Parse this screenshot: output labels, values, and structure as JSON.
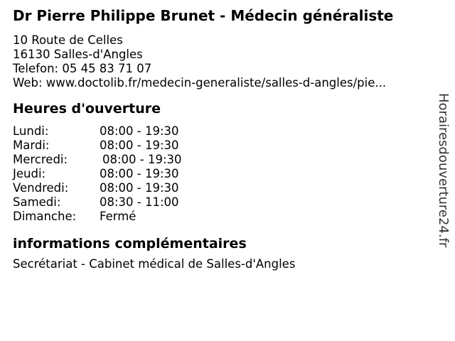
{
  "header": {
    "title": "Dr Pierre Philippe Brunet - Médecin généraliste",
    "street": "10 Route de Celles",
    "city": "16130 Salles-d'Angles",
    "phone_line": "Telefon: 05 45 83 71 07",
    "web_line": "Web: www.doctolib.fr/medecin-generaliste/salles-d-angles/pie..."
  },
  "hours": {
    "heading": "Heures d'ouverture",
    "rows": [
      {
        "day": "Lundi:",
        "time": "08:00 - 19:30"
      },
      {
        "day": "Mardi:",
        "time": "08:00 - 19:30"
      },
      {
        "day": "Mercredi:",
        "time": "08:00 - 19:30"
      },
      {
        "day": "Jeudi:",
        "time": "08:00 - 19:30"
      },
      {
        "day": "Vendredi:",
        "time": "08:00 - 19:30"
      },
      {
        "day": "Samedi:",
        "time": "08:30 - 11:00"
      },
      {
        "day": "Dimanche:",
        "time": "Fermé"
      }
    ]
  },
  "extra": {
    "heading": "informations complémentaires",
    "text": "Secrétariat - Cabinet médical de Salles-d'Angles"
  },
  "watermark": {
    "text": "Horairesdouverture24.fr"
  },
  "colors": {
    "text": "#000000",
    "background": "#ffffff",
    "watermark": "#333333"
  }
}
